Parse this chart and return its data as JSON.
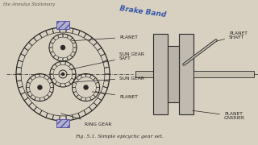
{
  "bg_color": "#d8d0c0",
  "title_top_left": "the Annulus Stationary",
  "title_top_center": "Brake Band",
  "caption": "Fig. 5.1. Simple epicyclic gear set.",
  "labels": {
    "planet_top": "PLANET",
    "sun_gear_shaft": "SUN GEAR\nSAFT",
    "sun_gear": "SUN GEAR",
    "planet_bottom": "PLANET",
    "ring_gear": "RING GEAR",
    "planet_carrier": "PLANET\nCARRIER",
    "planet_shaft": "PLANET\nSHAFT"
  },
  "line_color": "#2a2a2a",
  "text_color": "#222222",
  "ink_color": "#3355aa",
  "gear_line": "#333333",
  "hatch_color": "#5555aa"
}
